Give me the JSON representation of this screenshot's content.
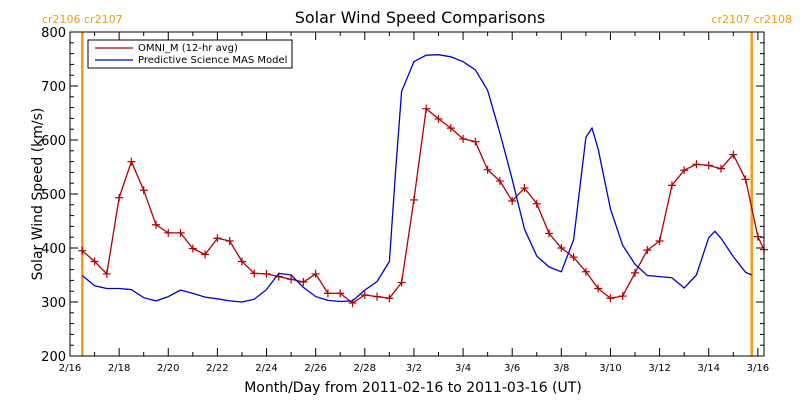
{
  "chart_data": {
    "type": "line",
    "title": "Solar Wind Speed Comparisons",
    "xlabel": "Month/Day from 2011-02-16 to 2011-03-16 (UT)",
    "ylabel": "Solar Wind Speed (km/s)",
    "x_range": [
      "2011-02-16",
      "2011-03-16T06:00"
    ],
    "ylim": [
      200,
      800
    ],
    "y_ticks": [
      200,
      300,
      400,
      500,
      600,
      700,
      800
    ],
    "x_ticks": [
      {
        "date": "2011-02-16",
        "label": "2/16"
      },
      {
        "date": "2011-02-18",
        "label": "2/18"
      },
      {
        "date": "2011-02-20",
        "label": "2/20"
      },
      {
        "date": "2011-02-22",
        "label": "2/22"
      },
      {
        "date": "2011-02-24",
        "label": "2/24"
      },
      {
        "date": "2011-02-26",
        "label": "2/26"
      },
      {
        "date": "2011-02-28",
        "label": "2/28"
      },
      {
        "date": "2011-03-02",
        "label": "3/2"
      },
      {
        "date": "2011-03-04",
        "label": "3/4"
      },
      {
        "date": "2011-03-06",
        "label": "3/6"
      },
      {
        "date": "2011-03-08",
        "label": "3/8"
      },
      {
        "date": "2011-03-10",
        "label": "3/10"
      },
      {
        "date": "2011-03-12",
        "label": "3/12"
      },
      {
        "date": "2011-03-14",
        "label": "3/14"
      },
      {
        "date": "2011-03-16",
        "label": "3/16"
      }
    ],
    "legend_position": "top-left",
    "grid": false,
    "series": [
      {
        "name": "OMNI_M (12-hr avg)",
        "color": "#b00000",
        "marker": "plus",
        "points": [
          [
            "2011-02-16T12:00",
            395
          ],
          [
            "2011-02-17T00:00",
            375
          ],
          [
            "2011-02-17T12:00",
            352
          ],
          [
            "2011-02-18T00:00",
            493
          ],
          [
            "2011-02-18T12:00",
            560
          ],
          [
            "2011-02-19T00:00",
            507
          ],
          [
            "2011-02-19T12:00",
            443
          ],
          [
            "2011-02-20T00:00",
            428
          ],
          [
            "2011-02-20T12:00",
            428
          ],
          [
            "2011-02-21T00:00",
            399
          ],
          [
            "2011-02-21T12:00",
            388
          ],
          [
            "2011-02-22T00:00",
            418
          ],
          [
            "2011-02-22T12:00",
            413
          ],
          [
            "2011-02-23T00:00",
            375
          ],
          [
            "2011-02-23T12:00",
            353
          ],
          [
            "2011-02-24T00:00",
            352
          ],
          [
            "2011-02-24T12:00",
            347
          ],
          [
            "2011-02-25T00:00",
            342
          ],
          [
            "2011-02-25T12:00",
            337
          ],
          [
            "2011-02-26T00:00",
            352
          ],
          [
            "2011-02-26T12:00",
            316
          ],
          [
            "2011-02-27T00:00",
            316
          ],
          [
            "2011-02-27T12:00",
            298
          ],
          [
            "2011-02-28T00:00",
            313
          ],
          [
            "2011-02-28T12:00",
            310
          ],
          [
            "2011-03-01T00:00",
            307
          ],
          [
            "2011-03-01T12:00",
            336
          ],
          [
            "2011-03-02T00:00",
            489
          ],
          [
            "2011-03-02T12:00",
            658
          ],
          [
            "2011-03-03T00:00",
            639
          ],
          [
            "2011-03-03T12:00",
            622
          ],
          [
            "2011-03-04T00:00",
            602
          ],
          [
            "2011-03-04T12:00",
            597
          ],
          [
            "2011-03-05T00:00",
            545
          ],
          [
            "2011-03-05T12:00",
            524
          ],
          [
            "2011-03-06T00:00",
            487
          ],
          [
            "2011-03-06T12:00",
            511
          ],
          [
            "2011-03-07T00:00",
            482
          ],
          [
            "2011-03-07T12:00",
            427
          ],
          [
            "2011-03-08T00:00",
            400
          ],
          [
            "2011-03-08T12:00",
            383
          ],
          [
            "2011-03-09T00:00",
            356
          ],
          [
            "2011-03-09T12:00",
            325
          ],
          [
            "2011-03-10T00:00",
            307
          ],
          [
            "2011-03-10T12:00",
            311
          ],
          [
            "2011-03-11T00:00",
            354
          ],
          [
            "2011-03-11T12:00",
            396
          ],
          [
            "2011-03-12T00:00",
            413
          ],
          [
            "2011-03-12T12:00",
            516
          ],
          [
            "2011-03-13T00:00",
            544
          ],
          [
            "2011-03-13T12:00",
            555
          ],
          [
            "2011-03-14T00:00",
            553
          ],
          [
            "2011-03-14T12:00",
            547
          ],
          [
            "2011-03-15T00:00",
            573
          ],
          [
            "2011-03-15T12:00",
            527
          ],
          [
            "2011-03-16T00:00",
            421
          ],
          [
            "2011-03-16T06:00",
            397
          ]
        ]
      },
      {
        "name": "Predictive Science MAS Model",
        "color": "#0000cc",
        "marker": "none",
        "points": [
          [
            "2011-02-16T12:00",
            349
          ],
          [
            "2011-02-17T00:00",
            330
          ],
          [
            "2011-02-17T12:00",
            325
          ],
          [
            "2011-02-18T00:00",
            325
          ],
          [
            "2011-02-18T12:00",
            323
          ],
          [
            "2011-02-19T00:00",
            308
          ],
          [
            "2011-02-19T12:00",
            302
          ],
          [
            "2011-02-20T00:00",
            310
          ],
          [
            "2011-02-20T12:00",
            322
          ],
          [
            "2011-02-21T00:00",
            316
          ],
          [
            "2011-02-21T12:00",
            309
          ],
          [
            "2011-02-22T00:00",
            306
          ],
          [
            "2011-02-22T12:00",
            302
          ],
          [
            "2011-02-23T00:00",
            300
          ],
          [
            "2011-02-23T12:00",
            305
          ],
          [
            "2011-02-24T00:00",
            323
          ],
          [
            "2011-02-24T12:00",
            353
          ],
          [
            "2011-02-25T00:00",
            350
          ],
          [
            "2011-02-25T12:00",
            327
          ],
          [
            "2011-02-26T00:00",
            310
          ],
          [
            "2011-02-26T12:00",
            303
          ],
          [
            "2011-02-27T00:00",
            301
          ],
          [
            "2011-02-27T12:00",
            302
          ],
          [
            "2011-02-28T00:00",
            322
          ],
          [
            "2011-02-28T12:00",
            338
          ],
          [
            "2011-03-01T00:00",
            375
          ],
          [
            "2011-03-01T06:00",
            540
          ],
          [
            "2011-03-01T12:00",
            690
          ],
          [
            "2011-03-02T00:00",
            745
          ],
          [
            "2011-03-02T12:00",
            757
          ],
          [
            "2011-03-03T00:00",
            758
          ],
          [
            "2011-03-03T12:00",
            754
          ],
          [
            "2011-03-04T00:00",
            745
          ],
          [
            "2011-03-04T12:00",
            730
          ],
          [
            "2011-03-05T00:00",
            692
          ],
          [
            "2011-03-05T12:00",
            613
          ],
          [
            "2011-03-06T00:00",
            527
          ],
          [
            "2011-03-06T12:00",
            435
          ],
          [
            "2011-03-07T00:00",
            385
          ],
          [
            "2011-03-07T12:00",
            365
          ],
          [
            "2011-03-08T00:00",
            356
          ],
          [
            "2011-03-08T12:00",
            415
          ],
          [
            "2011-03-09T00:00",
            605
          ],
          [
            "2011-03-09T06:00",
            622
          ],
          [
            "2011-03-09T12:00",
            583
          ],
          [
            "2011-03-10T00:00",
            472
          ],
          [
            "2011-03-10T12:00",
            405
          ],
          [
            "2011-03-11T00:00",
            370
          ],
          [
            "2011-03-11T12:00",
            349
          ],
          [
            "2011-03-12T00:00",
            347
          ],
          [
            "2011-03-12T12:00",
            345
          ],
          [
            "2011-03-13T00:00",
            326
          ],
          [
            "2011-03-13T12:00",
            350
          ],
          [
            "2011-03-14T00:00",
            419
          ],
          [
            "2011-03-14T06:00",
            431
          ],
          [
            "2011-03-14T12:00",
            418
          ],
          [
            "2011-03-15T00:00",
            384
          ],
          [
            "2011-03-15T12:00",
            355
          ],
          [
            "2011-03-15T18:00",
            350
          ]
        ]
      }
    ],
    "carrington_markers": [
      {
        "date": "2011-02-16T12:00",
        "label": "cr2106 cr2107",
        "color": "#f39c12"
      },
      {
        "date": "2011-03-15T18:00",
        "label": "cr2107 cr2108",
        "color": "#f39c12"
      }
    ]
  }
}
